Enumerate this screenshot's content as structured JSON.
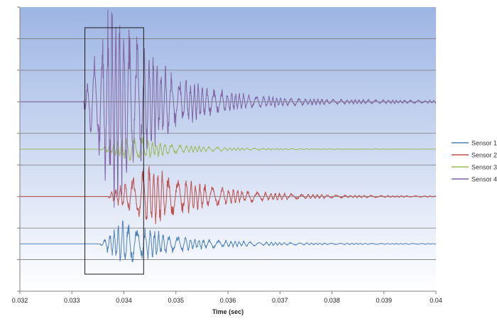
{
  "chart_data": {
    "type": "line",
    "title": "",
    "xlabel": "Time (sec)",
    "ylabel": "",
    "xlim": [
      0.032,
      0.04
    ],
    "x_ticks": [
      "0.032",
      "0.033",
      "0.034",
      "0.035",
      "0.036",
      "0.037",
      "0.038",
      "0.039",
      "0.04"
    ],
    "grid": true,
    "legend_position": "right",
    "plot_background": [
      "#9DB5E4",
      "#FFFFFF"
    ],
    "highlight_box": {
      "x_start": 0.03325,
      "x_end": 0.03438
    },
    "series": [
      {
        "name": "Sensor 1",
        "color": "#4F81BD",
        "onset": 0.03355,
        "peak_time": 0.034,
        "amplitude": 0.55,
        "freq": 9000,
        "decay": 1100
      },
      {
        "name": "Sensor 2",
        "color": "#C0504D",
        "onset": 0.0337,
        "peak_time": 0.0345,
        "amplitude": 0.75,
        "freq": 8500,
        "decay": 1000
      },
      {
        "name": "Sensor 3",
        "color": "#9BBB59",
        "onset": 0.03355,
        "peak_time": 0.0342,
        "amplitude": 0.3,
        "freq": 9500,
        "decay": 1300
      },
      {
        "name": "Sensor 4",
        "color": "#8064A2",
        "onset": 0.03322,
        "peak_time": 0.0338,
        "amplitude": 2.4,
        "freq": 10000,
        "decay": 1200
      }
    ]
  }
}
